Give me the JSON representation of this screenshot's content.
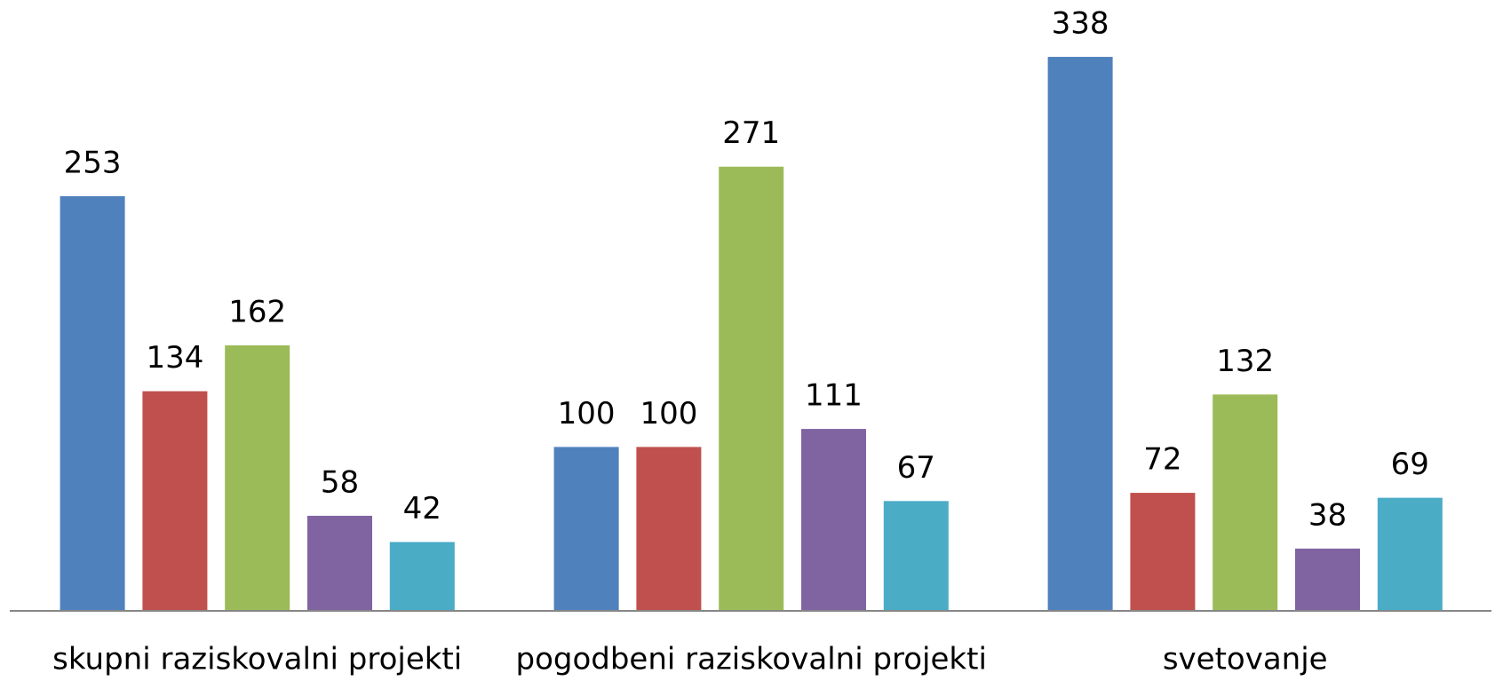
{
  "chart_data": {
    "type": "bar",
    "categories": [
      "skupni raziskovalni projekti",
      "pogodbeni raziskovalni projekti",
      "svetovanje"
    ],
    "series": [
      {
        "color": "#4f81bd",
        "values": [
          253,
          100,
          338
        ]
      },
      {
        "color": "#c0504d",
        "values": [
          134,
          100,
          72
        ]
      },
      {
        "color": "#9bbb59",
        "values": [
          162,
          271,
          132
        ]
      },
      {
        "color": "#8064a2",
        "values": [
          58,
          111,
          38
        ]
      },
      {
        "color": "#4bacc6",
        "values": [
          42,
          67,
          69
        ]
      }
    ]
  }
}
